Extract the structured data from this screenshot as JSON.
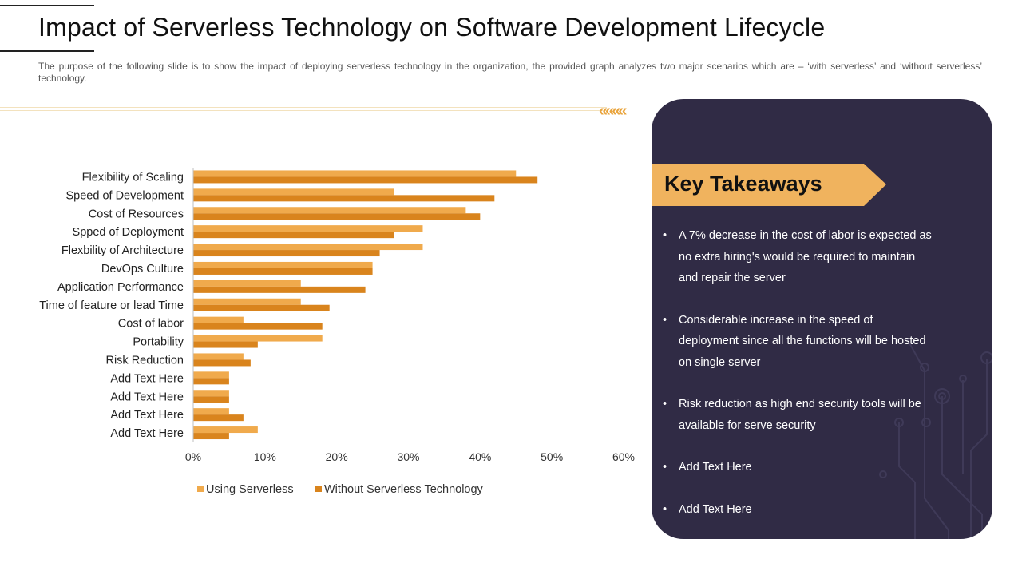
{
  "header": {
    "title": "Impact of Serverless Technology on Software Development Lifecycle",
    "subtitle": "The purpose of the following slide is to show the impact of deploying serverless technology in the organization, the provided graph analyzes two major scenarios which are – ‘with serverless’ and ‘without serverless’ technology."
  },
  "decor": {
    "chevrons": "««««"
  },
  "colors": {
    "series_1": "#f0aa4c",
    "series_2": "#d9841d",
    "panel_bg": "#302b45",
    "banner": "#f0b35e"
  },
  "chart_data": {
    "type": "bar",
    "orientation": "horizontal",
    "title": "",
    "xlabel": "",
    "ylabel": "",
    "categories": [
      "Flexibility of Scaling",
      "Speed of Development",
      "Cost of Resources",
      "Spped of Deployment",
      "Flexbility of Architecture",
      "DevOps Culture",
      "Application Performance",
      "Time of feature or lead Time",
      "Cost of labor",
      "Portability",
      "Risk Reduction",
      "Add Text Here",
      "Add Text Here",
      "Add Text Here",
      "Add Text Here"
    ],
    "series": [
      {
        "name": "Using Serverless",
        "values": [
          45,
          28,
          38,
          32,
          32,
          25,
          15,
          15,
          7,
          18,
          7,
          5,
          5,
          5,
          9
        ]
      },
      {
        "name": "Without Serverless Technology",
        "values": [
          48,
          42,
          40,
          28,
          26,
          25,
          24,
          19,
          18,
          9,
          8,
          5,
          5,
          7,
          5
        ]
      }
    ],
    "xlim": [
      0,
      60
    ],
    "xticks": [
      0,
      10,
      20,
      30,
      40,
      50,
      60
    ],
    "tick_format": "percent",
    "grid": false,
    "legend": "bottom"
  },
  "takeaways": {
    "title": "Key Takeaways",
    "bullet": "•",
    "items": [
      "A 7% decrease in the cost of labor is expected as no extra hiring's would be required to maintain and repair the server",
      "Considerable increase in the speed of deployment since all the functions will be hosted on single server",
      "Risk reduction as high end security tools will be available for serve security",
      "Add Text Here",
      "Add Text Here"
    ]
  }
}
